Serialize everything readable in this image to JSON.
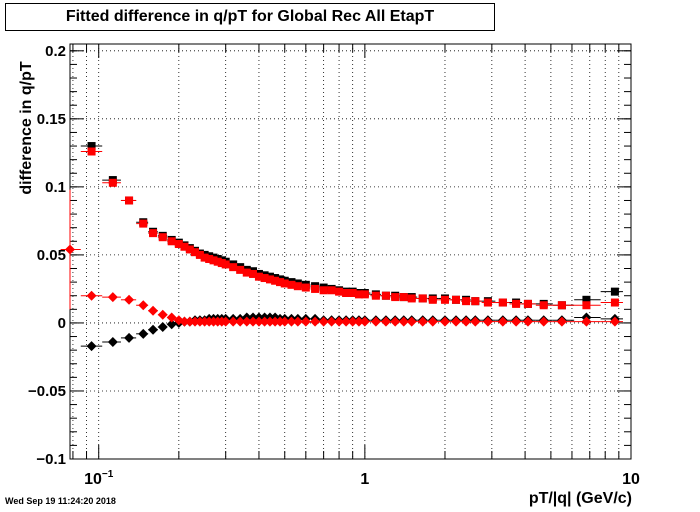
{
  "chart_data": {
    "type": "scatter",
    "title": "Fitted difference in q/pT for Global Rec All EtapT",
    "xlabel": "pT/|q| (GeV/c)",
    "ylabel": "difference in q/pT",
    "x_scale": "log",
    "xlim": [
      0.078,
      10
    ],
    "ylim": [
      -0.1,
      0.205
    ],
    "grid": true,
    "x_tick_labels": [
      {
        "value": 0.1,
        "base": "10",
        "exp": "−1"
      },
      {
        "value": 1,
        "base": "1",
        "exp": ""
      },
      {
        "value": 10,
        "base": "10",
        "exp": ""
      }
    ],
    "y_ticks": [
      -0.1,
      -0.05,
      0,
      0.05,
      0.1,
      0.15,
      0.2
    ],
    "y_tick_labels": [
      "−0.1",
      "−0.05",
      "0",
      "0.05",
      "0.1",
      "0.15",
      "0.2"
    ],
    "x": [
      0.078,
      0.094,
      0.113,
      0.13,
      0.147,
      0.16,
      0.174,
      0.188,
      0.2,
      0.21,
      0.22,
      0.23,
      0.24,
      0.25,
      0.26,
      0.27,
      0.28,
      0.29,
      0.3,
      0.32,
      0.34,
      0.36,
      0.38,
      0.4,
      0.42,
      0.44,
      0.46,
      0.48,
      0.5,
      0.53,
      0.56,
      0.6,
      0.65,
      0.7,
      0.75,
      0.8,
      0.85,
      0.9,
      0.95,
      1.0,
      1.1,
      1.2,
      1.3,
      1.4,
      1.5,
      1.65,
      1.8,
      2.0,
      2.2,
      2.4,
      2.6,
      2.9,
      3.3,
      3.7,
      4.1,
      4.7,
      5.5,
      6.8,
      8.7
    ],
    "series": [
      {
        "marker": "square",
        "color": "#000000",
        "values": [
          null,
          0.13,
          0.105,
          0.09,
          0.074,
          0.067,
          0.064,
          0.061,
          0.059,
          0.057,
          0.055,
          0.053,
          0.051,
          0.05,
          0.049,
          0.048,
          0.047,
          0.046,
          0.045,
          0.043,
          0.041,
          0.039,
          0.038,
          0.036,
          0.035,
          0.034,
          0.033,
          0.032,
          0.031,
          0.03,
          0.029,
          0.028,
          0.027,
          0.026,
          0.025,
          0.024,
          0.023,
          0.023,
          0.022,
          0.022,
          0.021,
          0.02,
          0.02,
          0.019,
          0.019,
          0.018,
          0.018,
          0.018,
          0.017,
          0.017,
          0.016,
          0.016,
          0.015,
          0.015,
          0.014,
          0.014,
          0.013,
          0.017,
          0.023
        ]
      },
      {
        "marker": "square",
        "color": "#ff0000",
        "values": [
          null,
          0.126,
          0.103,
          0.09,
          0.073,
          0.066,
          0.063,
          0.06,
          0.058,
          0.056,
          0.054,
          0.052,
          0.05,
          0.048,
          0.047,
          0.046,
          0.045,
          0.044,
          0.043,
          0.041,
          0.039,
          0.037,
          0.036,
          0.034,
          0.033,
          0.032,
          0.031,
          0.03,
          0.029,
          0.028,
          0.027,
          0.026,
          0.025,
          0.024,
          0.024,
          0.023,
          0.022,
          0.022,
          0.021,
          0.021,
          0.02,
          0.02,
          0.019,
          0.019,
          0.018,
          0.018,
          0.017,
          0.017,
          0.017,
          0.016,
          0.016,
          0.015,
          0.015,
          0.014,
          0.014,
          0.013,
          0.013,
          0.013,
          0.015
        ]
      },
      {
        "marker": "diamond",
        "color": "#000000",
        "values": [
          null,
          -0.017,
          -0.014,
          -0.011,
          -0.008,
          -0.005,
          -0.003,
          -0.001,
          0.0,
          0.001,
          0.001,
          0.002,
          0.002,
          0.002,
          0.003,
          0.003,
          0.003,
          0.003,
          0.003,
          0.003,
          0.003,
          0.004,
          0.004,
          0.004,
          0.004,
          0.004,
          0.004,
          0.003,
          0.003,
          0.003,
          0.003,
          0.003,
          0.003,
          0.002,
          0.002,
          0.002,
          0.002,
          0.002,
          0.002,
          0.002,
          0.002,
          0.002,
          0.002,
          0.002,
          0.002,
          0.002,
          0.002,
          0.002,
          0.002,
          0.002,
          0.002,
          0.002,
          0.002,
          0.002,
          0.002,
          0.002,
          0.002,
          0.004,
          0.003
        ]
      },
      {
        "marker": "diamond",
        "color": "#ff0000",
        "values": [
          0.054,
          0.02,
          0.019,
          0.017,
          0.013,
          0.009,
          0.006,
          0.004,
          0.002,
          0.001,
          0.001,
          0.001,
          0.001,
          0.001,
          0.001,
          0.001,
          0.001,
          0.001,
          0.001,
          0.001,
          0.001,
          0.001,
          0.001,
          0.001,
          0.001,
          0.001,
          0.001,
          0.001,
          0.001,
          0.001,
          0.001,
          0.001,
          0.001,
          0.001,
          0.001,
          0.001,
          0.001,
          0.001,
          0.001,
          0.001,
          0.001,
          0.001,
          0.001,
          0.001,
          0.001,
          0.001,
          0.001,
          0.001,
          0.001,
          0.001,
          0.001,
          0.001,
          0.001,
          0.001,
          0.001,
          0.001,
          0.001,
          0.001,
          0.001
        ]
      }
    ],
    "first_point_error_y": [
      0.01,
      0.098
    ]
  },
  "timestamp": "Wed Sep 19 11:24:20 2018"
}
